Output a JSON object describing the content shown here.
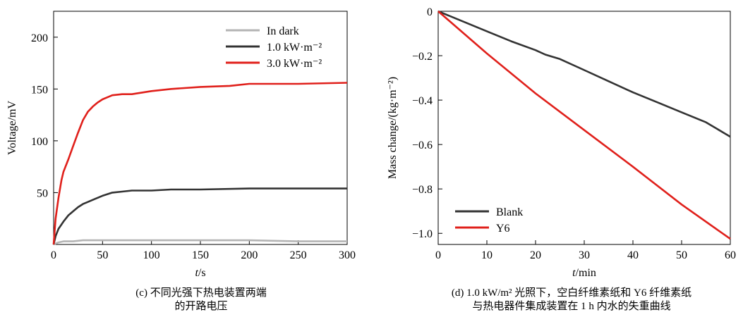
{
  "charts": [
    {
      "id": "c",
      "caption_lines": [
        "(c) 不同光强下热电装置两端",
        "的开路电压"
      ],
      "xlabel_italic": "t",
      "xlabel_rest": "/s",
      "ylabel": "Voltage/mV",
      "x_ticks": [
        0,
        50,
        100,
        150,
        200,
        250,
        300
      ],
      "y_ticks": [
        50,
        100,
        150,
        200
      ],
      "xlim": [
        0,
        300
      ],
      "ylim": [
        0,
        225
      ],
      "legend_position": "top-right"
    },
    {
      "id": "d",
      "caption_lines": [
        "(d) 1.0 kW/m² 光照下，空白纤维素纸和 Y6 纤维素纸",
        "与热电器件集成装置在 1 h 内水的失重曲线"
      ],
      "xlabel_italic": "t",
      "xlabel_rest": "/min",
      "ylabel": "Mass change/(kg·m⁻²)",
      "x_ticks": [
        0,
        10,
        20,
        30,
        40,
        50,
        60
      ],
      "y_ticks": [
        "0",
        "−0.2",
        "−0.4",
        "−0.6",
        "−0.8",
        "−1.0"
      ],
      "xlim": [
        0,
        60
      ],
      "ylim": [
        -1.05,
        0
      ],
      "legend_position": "bottom-left"
    }
  ],
  "chart_data": [
    {
      "type": "line",
      "series": [
        {
          "name": "In dark",
          "color": "#b4b4b4",
          "x": [
            0,
            5,
            10,
            20,
            30,
            50,
            100,
            150,
            200,
            250,
            300
          ],
          "y": [
            0,
            2,
            3,
            3,
            4,
            4,
            4,
            4,
            4,
            3,
            3
          ]
        },
        {
          "name": "1.0 kW·m⁻²",
          "color": "#333333",
          "x": [
            0,
            2,
            5,
            10,
            15,
            20,
            25,
            30,
            35,
            40,
            50,
            60,
            70,
            80,
            100,
            120,
            150,
            200,
            250,
            300
          ],
          "y": [
            0,
            8,
            15,
            22,
            28,
            32,
            36,
            39,
            41,
            43,
            47,
            50,
            51,
            52,
            52,
            53,
            53,
            54,
            54,
            54
          ]
        },
        {
          "name": "3.0 kW·m⁻²",
          "color": "#e0201b",
          "x": [
            0,
            2,
            5,
            8,
            10,
            15,
            20,
            25,
            30,
            35,
            40,
            45,
            50,
            55,
            60,
            70,
            80,
            100,
            120,
            150,
            180,
            200,
            220,
            250,
            300
          ],
          "y": [
            0,
            25,
            45,
            62,
            70,
            82,
            95,
            108,
            120,
            128,
            133,
            137,
            140,
            142,
            144,
            145,
            145,
            148,
            150,
            152,
            153,
            155,
            155,
            155,
            156
          ]
        }
      ]
    },
    {
      "type": "line",
      "series": [
        {
          "name": "Blank",
          "color": "#333333",
          "x": [
            0,
            5,
            10,
            15,
            20,
            22,
            25,
            30,
            35,
            40,
            45,
            50,
            55,
            60
          ],
          "y": [
            0,
            -0.045,
            -0.09,
            -0.135,
            -0.175,
            -0.195,
            -0.215,
            -0.265,
            -0.315,
            -0.365,
            -0.41,
            -0.455,
            -0.5,
            -0.565
          ]
        },
        {
          "name": "Y6",
          "color": "#e0201b",
          "x": [
            0,
            10,
            20,
            30,
            40,
            50,
            60
          ],
          "y": [
            0,
            -0.19,
            -0.37,
            -0.535,
            -0.7,
            -0.87,
            -1.025
          ]
        }
      ]
    }
  ]
}
